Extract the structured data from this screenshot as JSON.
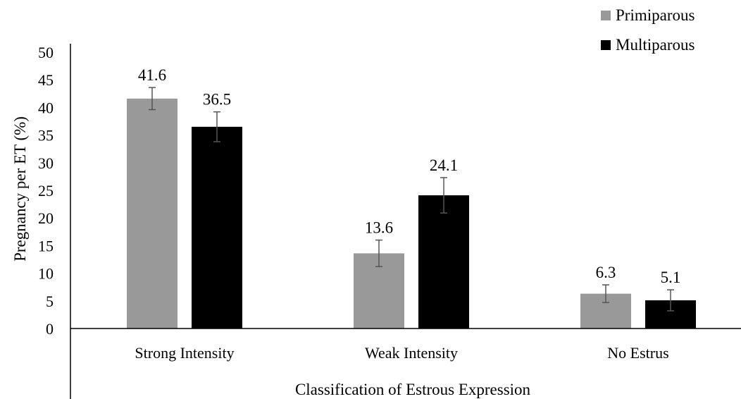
{
  "chart_data": {
    "type": "bar",
    "title": "",
    "xlabel": "Classification of Estrous Expression",
    "ylabel": "Pregnancy per ET (%)",
    "ylim": [
      0,
      50
    ],
    "yticks": [
      0,
      5,
      10,
      15,
      20,
      25,
      30,
      35,
      40,
      45,
      50
    ],
    "grid": false,
    "legend_position": "top-right",
    "categories": [
      "Strong Intensity",
      "Weak Intensity",
      "No Estrus"
    ],
    "series": [
      {
        "name": "Primiparous",
        "color": "#999999",
        "values": [
          41.6,
          13.6,
          6.3
        ],
        "labels": [
          "41.6",
          "13.6",
          "6.3"
        ],
        "error": [
          2.0,
          2.4,
          1.6
        ]
      },
      {
        "name": "Multiparous",
        "color": "#000000",
        "values": [
          36.5,
          24.1,
          5.1
        ],
        "labels": [
          "36.5",
          "24.1",
          "5.1"
        ],
        "error": [
          2.7,
          3.2,
          1.9
        ]
      }
    ]
  }
}
